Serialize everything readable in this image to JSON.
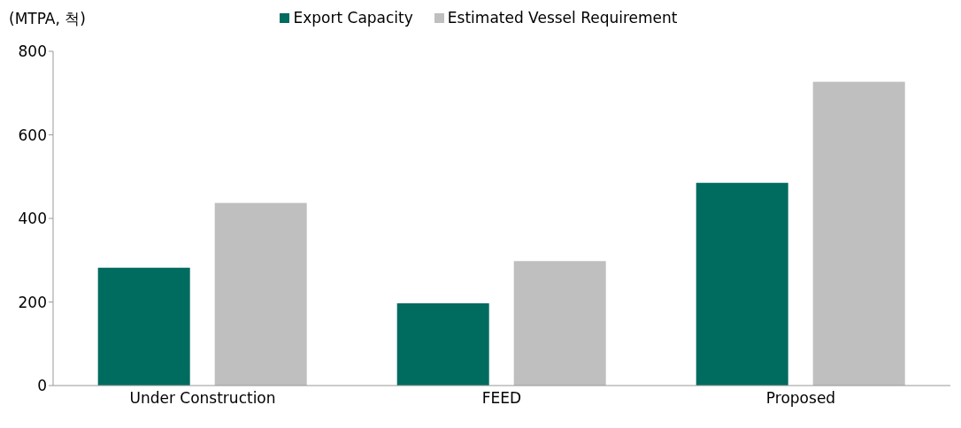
{
  "chart_data": {
    "type": "bar",
    "ylabel": "(MTPA, 척)",
    "categories": [
      "Under Construction",
      "FEED",
      "Proposed"
    ],
    "series": [
      {
        "name": "Export Capacity",
        "color": "#006b5f",
        "values": [
          282,
          197,
          485
        ]
      },
      {
        "name": "Estimated Vessel Requirement",
        "color": "#bfbfbf",
        "values": [
          437,
          298,
          727
        ]
      }
    ],
    "ylim": [
      0,
      800
    ],
    "yticks": [
      0,
      200,
      400,
      600,
      800
    ],
    "legend": "top"
  }
}
